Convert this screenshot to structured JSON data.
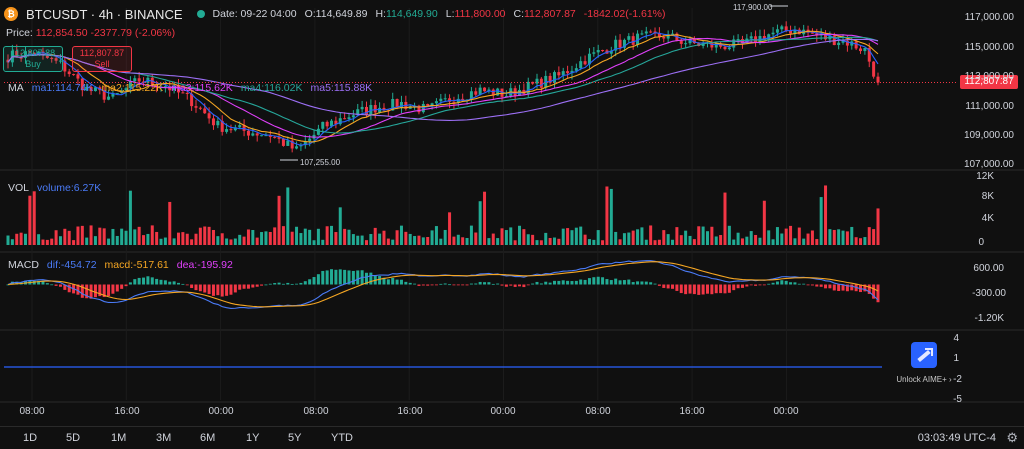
{
  "header": {
    "symbol": "BTCUSDT · 4h · BINANCE",
    "date": "Date: 09-22 04:00",
    "open_label": "O:",
    "open": "114,649.89",
    "high_label": "H:",
    "high": "114,649.90",
    "low_label": "L:",
    "low": "111,800.00",
    "close_label": "C:",
    "close": "112,807.87",
    "change": "-1842.02(-1.61%)"
  },
  "price_row": {
    "label": "Price:",
    "value": "112,854.50",
    "change": "-2377.79 (-2.06%)"
  },
  "buy_box": {
    "price": "112,807.88",
    "label": "Buy"
  },
  "sell_box": {
    "price": "112,807.87",
    "label": "Sell"
  },
  "ma_legend": {
    "title": "MA",
    "ma1": "ma1:114.74K",
    "ma2": "ma2:115.22K",
    "ma3": "ma3:115.62K",
    "ma4": "ma4:116.02K",
    "ma5": "ma5:115.88K"
  },
  "vol_legend": {
    "title": "VOL",
    "volume": "volume:6.27K"
  },
  "macd_legend": {
    "title": "MACD",
    "dif": "dif:-454.72",
    "macd": "macd:-517.61",
    "dea": "dea:-195.92"
  },
  "last_price_tag": "112,807.87",
  "annotations": {
    "high": "117,900.00",
    "low": "107,255.00"
  },
  "price_axis": [
    "117,000.00",
    "115,000.00",
    "113,000.00",
    "111,000.00",
    "109,000.00",
    "107,000.00"
  ],
  "vol_axis": [
    "12K",
    "8K",
    "4K",
    "0"
  ],
  "macd_axis": [
    "600.00",
    "-300.00",
    "-1.20K"
  ],
  "extra_axis": [
    "4",
    "1",
    "-2",
    "-5"
  ],
  "time_axis": [
    "08:00",
    "16:00",
    "00:00",
    "08:00",
    "16:00",
    "00:00",
    "08:00",
    "16:00",
    "00:00"
  ],
  "ranges": [
    "1D",
    "5D",
    "1M",
    "3M",
    "6M",
    "1Y",
    "5Y",
    "YTD"
  ],
  "clock": "03:03:49 UTC-4",
  "unlock": "Unlock AIME+",
  "colors": {
    "up": "#22ab94",
    "down": "#f23645",
    "ma1": "#2962ff",
    "ma2": "#f5a623",
    "ma3": "#e040fb",
    "ma4": "#26a69a",
    "ma5": "#9c6ff5",
    "dif": "#4a7bf7",
    "dea": "#f5a623",
    "baseline": "#2962ff"
  },
  "chart_data": [
    {
      "type": "candlestick",
      "interval": "4h",
      "ylim": [
        106500,
        118200
      ],
      "anchors": [
        {
          "x": 0,
          "y": 114800
        },
        {
          "x": 6,
          "y": 115100
        },
        {
          "x": 12,
          "y": 114200
        },
        {
          "x": 18,
          "y": 112300
        },
        {
          "x": 24,
          "y": 111600
        },
        {
          "x": 30,
          "y": 113000
        },
        {
          "x": 36,
          "y": 112600
        },
        {
          "x": 42,
          "y": 111400
        },
        {
          "x": 48,
          "y": 109500
        },
        {
          "x": 54,
          "y": 109100
        },
        {
          "x": 60,
          "y": 108800
        },
        {
          "x": 66,
          "y": 107600
        },
        {
          "x": 72,
          "y": 109400
        },
        {
          "x": 78,
          "y": 110300
        },
        {
          "x": 84,
          "y": 110900
        },
        {
          "x": 90,
          "y": 111200
        },
        {
          "x": 96,
          "y": 110700
        },
        {
          "x": 102,
          "y": 111700
        },
        {
          "x": 108,
          "y": 112200
        },
        {
          "x": 114,
          "y": 111900
        },
        {
          "x": 120,
          "y": 112600
        },
        {
          "x": 126,
          "y": 113300
        },
        {
          "x": 132,
          "y": 114600
        },
        {
          "x": 138,
          "y": 115600
        },
        {
          "x": 144,
          "y": 116200
        },
        {
          "x": 150,
          "y": 116400
        },
        {
          "x": 156,
          "y": 115800
        },
        {
          "x": 162,
          "y": 115600
        },
        {
          "x": 168,
          "y": 115700
        },
        {
          "x": 174,
          "y": 116500
        },
        {
          "x": 180,
          "y": 116900
        },
        {
          "x": 186,
          "y": 116300
        },
        {
          "x": 192,
          "y": 115900
        },
        {
          "x": 196,
          "y": 115300
        },
        {
          "x": 199,
          "y": 112808
        }
      ],
      "last": {
        "open": 114649.89,
        "high": 114649.9,
        "low": 111800.0,
        "close": 112807.87
      },
      "annotations": [
        {
          "label": "117,900.00",
          "value": 117900
        },
        {
          "label": "107,255.00",
          "value": 107255
        }
      ],
      "ma_periods_note": "ma1..ma5 moving averages"
    },
    {
      "type": "bar",
      "name": "VOL",
      "ylim": [
        0,
        12000
      ],
      "last_value": 6270
    },
    {
      "type": "bar+line",
      "name": "MACD",
      "ylim": [
        -1500,
        900
      ],
      "last": {
        "dif": -454.72,
        "macd": -517.61,
        "dea": -195.92
      }
    }
  ]
}
